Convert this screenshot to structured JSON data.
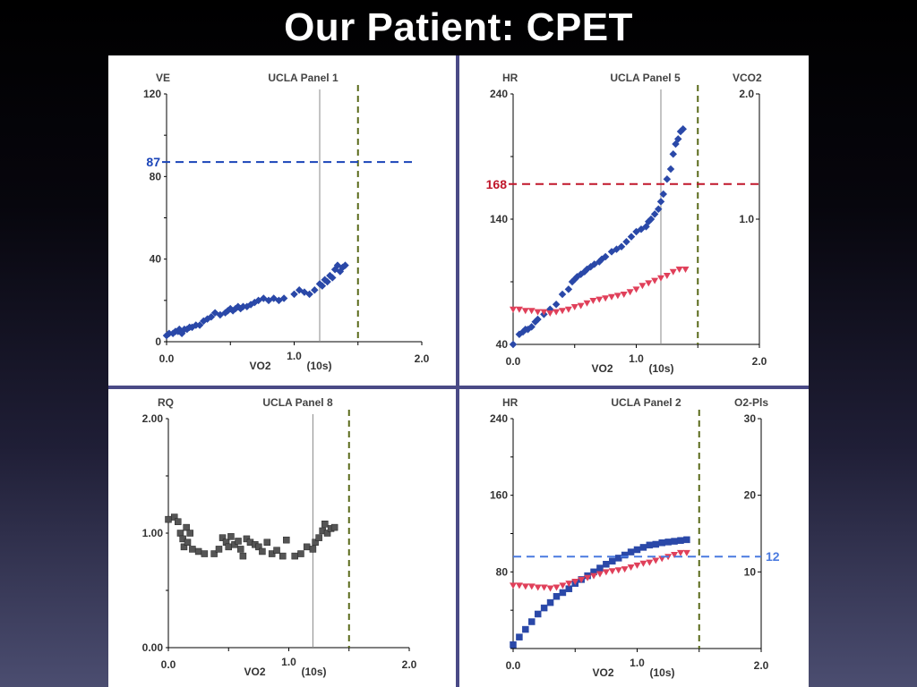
{
  "slide": {
    "title": "Our Patient:  CPET"
  },
  "colors": {
    "blue": "#2a48a8",
    "red": "#e0405a",
    "gray": "#555555",
    "refRed": "#c0162a",
    "refBlue": "#1a44b8",
    "refLightBlue": "#4a7ae0",
    "greenDash": "#5a6a1a"
  },
  "chart_data": [
    {
      "type": "scatter",
      "title": "UCLA  Panel 1",
      "xlabel": "VO2",
      "xunit": "(10s)",
      "ylabel": "VE",
      "xlim": [
        0,
        2.0
      ],
      "ylim": [
        0,
        120
      ],
      "x_ticks": [
        "0.0",
        "1.0",
        "2.0"
      ],
      "y_ticks": [
        "0",
        "40",
        "80",
        "120"
      ],
      "reference_line": {
        "value": 87,
        "label": "87"
      },
      "vlines": [
        1.2,
        1.5
      ],
      "series": [
        {
          "marker": "diamond",
          "color": "#2a48a8",
          "points": [
            [
              0.0,
              3
            ],
            [
              0.02,
              4
            ],
            [
              0.05,
              4
            ],
            [
              0.07,
              5
            ],
            [
              0.09,
              5
            ],
            [
              0.1,
              6
            ],
            [
              0.12,
              4
            ],
            [
              0.14,
              6
            ],
            [
              0.16,
              6
            ],
            [
              0.18,
              7
            ],
            [
              0.2,
              7
            ],
            [
              0.23,
              8
            ],
            [
              0.26,
              8
            ],
            [
              0.29,
              10
            ],
            [
              0.32,
              11
            ],
            [
              0.35,
              12
            ],
            [
              0.38,
              14
            ],
            [
              0.42,
              13
            ],
            [
              0.46,
              14
            ],
            [
              0.48,
              15
            ],
            [
              0.5,
              16
            ],
            [
              0.52,
              15
            ],
            [
              0.54,
              16
            ],
            [
              0.56,
              17
            ],
            [
              0.58,
              16
            ],
            [
              0.6,
              17
            ],
            [
              0.63,
              17
            ],
            [
              0.66,
              18
            ],
            [
              0.69,
              19
            ],
            [
              0.72,
              20
            ],
            [
              0.76,
              21
            ],
            [
              0.8,
              20
            ],
            [
              0.84,
              21
            ],
            [
              0.88,
              20
            ],
            [
              0.92,
              21
            ],
            [
              1.0,
              23
            ],
            [
              1.04,
              25
            ],
            [
              1.08,
              24
            ],
            [
              1.12,
              23
            ],
            [
              1.16,
              25
            ],
            [
              1.2,
              28
            ],
            [
              1.22,
              27
            ],
            [
              1.24,
              30
            ],
            [
              1.26,
              29
            ],
            [
              1.28,
              32
            ],
            [
              1.3,
              31
            ],
            [
              1.32,
              35
            ],
            [
              1.34,
              37
            ],
            [
              1.36,
              34
            ],
            [
              1.38,
              36
            ],
            [
              1.4,
              37
            ]
          ]
        }
      ]
    },
    {
      "type": "scatter",
      "title": "UCLA Panel 5",
      "xlabel": "VO2",
      "xunit": "(10s)",
      "ylabel": "HR",
      "y2label": "VCO2",
      "xlim": [
        0,
        2.0
      ],
      "ylim": [
        40,
        240
      ],
      "y2lim": [
        0,
        2.0
      ],
      "x_ticks": [
        "0.0",
        "1.0",
        "2.0"
      ],
      "y_ticks": [
        "40",
        "140",
        "240"
      ],
      "y2_ticks": [
        "1.0",
        "2.0"
      ],
      "reference_line": {
        "value": 168,
        "label": "168"
      },
      "vlines": [
        1.2,
        1.5
      ],
      "series": [
        {
          "marker": "diamond",
          "axis": "y2",
          "color": "#2a48a8",
          "points": [
            [
              0.0,
              0.0
            ],
            [
              0.05,
              0.08
            ],
            [
              0.08,
              0.1
            ],
            [
              0.1,
              0.12
            ],
            [
              0.12,
              0.12
            ],
            [
              0.15,
              0.14
            ],
            [
              0.18,
              0.18
            ],
            [
              0.2,
              0.2
            ],
            [
              0.25,
              0.24
            ],
            [
              0.3,
              0.28
            ],
            [
              0.35,
              0.32
            ],
            [
              0.4,
              0.4
            ],
            [
              0.45,
              0.44
            ],
            [
              0.48,
              0.5
            ],
            [
              0.5,
              0.52
            ],
            [
              0.52,
              0.54
            ],
            [
              0.55,
              0.56
            ],
            [
              0.58,
              0.58
            ],
            [
              0.6,
              0.6
            ],
            [
              0.63,
              0.62
            ],
            [
              0.66,
              0.64
            ],
            [
              0.7,
              0.66
            ],
            [
              0.72,
              0.68
            ],
            [
              0.75,
              0.7
            ],
            [
              0.8,
              0.74
            ],
            [
              0.84,
              0.76
            ],
            [
              0.88,
              0.78
            ],
            [
              0.92,
              0.82
            ],
            [
              0.96,
              0.86
            ],
            [
              1.0,
              0.9
            ],
            [
              1.04,
              0.92
            ],
            [
              1.08,
              0.94
            ],
            [
              1.1,
              0.98
            ],
            [
              1.12,
              1.0
            ],
            [
              1.15,
              1.04
            ],
            [
              1.18,
              1.08
            ],
            [
              1.2,
              1.14
            ],
            [
              1.22,
              1.2
            ],
            [
              1.25,
              1.32
            ],
            [
              1.28,
              1.4
            ],
            [
              1.3,
              1.52
            ],
            [
              1.32,
              1.6
            ],
            [
              1.34,
              1.64
            ],
            [
              1.36,
              1.7
            ],
            [
              1.38,
              1.72
            ]
          ]
        },
        {
          "marker": "triangle-down",
          "axis": "y",
          "color": "#e0405a",
          "points": [
            [
              0.0,
              68
            ],
            [
              0.05,
              68
            ],
            [
              0.1,
              67
            ],
            [
              0.15,
              67
            ],
            [
              0.2,
              66
            ],
            [
              0.25,
              66
            ],
            [
              0.3,
              65
            ],
            [
              0.35,
              66
            ],
            [
              0.4,
              67
            ],
            [
              0.45,
              68
            ],
            [
              0.5,
              70
            ],
            [
              0.55,
              71
            ],
            [
              0.6,
              73
            ],
            [
              0.65,
              75
            ],
            [
              0.7,
              76
            ],
            [
              0.75,
              77
            ],
            [
              0.8,
              78
            ],
            [
              0.85,
              79
            ],
            [
              0.9,
              80
            ],
            [
              0.95,
              82
            ],
            [
              1.0,
              84
            ],
            [
              1.05,
              87
            ],
            [
              1.1,
              89
            ],
            [
              1.15,
              91
            ],
            [
              1.2,
              93
            ],
            [
              1.25,
              95
            ],
            [
              1.3,
              98
            ],
            [
              1.35,
              100
            ],
            [
              1.4,
              100
            ]
          ]
        }
      ]
    },
    {
      "type": "scatter",
      "title": "UCLA Panel 8",
      "xlabel": "VO2",
      "xunit": "(10s)",
      "ylabel": "RQ",
      "xlim": [
        0,
        2.0
      ],
      "ylim": [
        0,
        2.0
      ],
      "x_ticks": [
        "0.0",
        "1.0",
        "2.0"
      ],
      "y_ticks": [
        "0.00",
        "1.00",
        "2.00"
      ],
      "vlines": [
        1.2,
        1.5
      ],
      "series": [
        {
          "marker": "square",
          "color": "#555555",
          "points": [
            [
              0.0,
              1.12
            ],
            [
              0.05,
              1.14
            ],
            [
              0.08,
              1.1
            ],
            [
              0.1,
              1.0
            ],
            [
              0.12,
              0.95
            ],
            [
              0.13,
              0.88
            ],
            [
              0.15,
              1.05
            ],
            [
              0.16,
              0.92
            ],
            [
              0.18,
              1.0
            ],
            [
              0.2,
              0.86
            ],
            [
              0.25,
              0.84
            ],
            [
              0.3,
              0.82
            ],
            [
              0.38,
              0.82
            ],
            [
              0.42,
              0.86
            ],
            [
              0.45,
              0.96
            ],
            [
              0.48,
              0.92
            ],
            [
              0.5,
              0.88
            ],
            [
              0.52,
              0.97
            ],
            [
              0.55,
              0.9
            ],
            [
              0.58,
              0.93
            ],
            [
              0.6,
              0.86
            ],
            [
              0.62,
              0.8
            ],
            [
              0.65,
              0.95
            ],
            [
              0.68,
              0.92
            ],
            [
              0.72,
              0.9
            ],
            [
              0.75,
              0.88
            ],
            [
              0.78,
              0.84
            ],
            [
              0.82,
              0.92
            ],
            [
              0.86,
              0.82
            ],
            [
              0.9,
              0.85
            ],
            [
              0.95,
              0.8
            ],
            [
              0.98,
              0.94
            ],
            [
              1.05,
              0.8
            ],
            [
              1.1,
              0.82
            ],
            [
              1.15,
              0.88
            ],
            [
              1.2,
              0.86
            ],
            [
              1.22,
              0.92
            ],
            [
              1.25,
              0.96
            ],
            [
              1.28,
              1.02
            ],
            [
              1.3,
              1.08
            ],
            [
              1.32,
              1.0
            ],
            [
              1.35,
              1.04
            ],
            [
              1.38,
              1.05
            ]
          ]
        }
      ]
    },
    {
      "type": "scatter",
      "title": "UCLA Panel 2",
      "xlabel": "VO2",
      "xunit": "(10s)",
      "ylabel": "HR",
      "y2label": "O2-Pls",
      "xlim": [
        0,
        2.0
      ],
      "ylim": [
        0,
        240
      ],
      "y2lim": [
        0,
        30
      ],
      "x_ticks": [
        "0.0",
        "1.0",
        "2.0"
      ],
      "y_ticks": [
        "80",
        "160",
        "240"
      ],
      "y2_ticks": [
        "10",
        "20",
        "30"
      ],
      "reference_line": {
        "value": 12,
        "label": "12"
      },
      "vlines": [
        1.5
      ],
      "series": [
        {
          "marker": "square",
          "axis": "y2",
          "color": "#2a48a8",
          "points": [
            [
              0.0,
              0.5
            ],
            [
              0.05,
              1.5
            ],
            [
              0.1,
              2.5
            ],
            [
              0.15,
              3.5
            ],
            [
              0.2,
              4.5
            ],
            [
              0.25,
              5.3
            ],
            [
              0.3,
              6.0
            ],
            [
              0.35,
              6.8
            ],
            [
              0.4,
              7.3
            ],
            [
              0.45,
              7.8
            ],
            [
              0.5,
              8.5
            ],
            [
              0.55,
              9.0
            ],
            [
              0.6,
              9.5
            ],
            [
              0.65,
              10.0
            ],
            [
              0.7,
              10.5
            ],
            [
              0.75,
              11.0
            ],
            [
              0.8,
              11.4
            ],
            [
              0.85,
              11.8
            ],
            [
              0.9,
              12.2
            ],
            [
              0.95,
              12.6
            ],
            [
              1.0,
              12.9
            ],
            [
              1.05,
              13.2
            ],
            [
              1.1,
              13.5
            ],
            [
              1.15,
              13.6
            ],
            [
              1.2,
              13.8
            ],
            [
              1.25,
              13.9
            ],
            [
              1.3,
              14.0
            ],
            [
              1.35,
              14.1
            ],
            [
              1.4,
              14.2
            ]
          ]
        },
        {
          "marker": "triangle-down",
          "axis": "y",
          "color": "#e0405a",
          "points": [
            [
              0.0,
              66
            ],
            [
              0.05,
              66
            ],
            [
              0.1,
              65
            ],
            [
              0.15,
              65
            ],
            [
              0.2,
              64
            ],
            [
              0.25,
              64
            ],
            [
              0.3,
              63
            ],
            [
              0.35,
              64
            ],
            [
              0.4,
              66
            ],
            [
              0.45,
              68
            ],
            [
              0.5,
              70
            ],
            [
              0.55,
              72
            ],
            [
              0.6,
              74
            ],
            [
              0.65,
              76
            ],
            [
              0.7,
              78
            ],
            [
              0.75,
              80
            ],
            [
              0.8,
              81
            ],
            [
              0.85,
              82
            ],
            [
              0.9,
              83
            ],
            [
              0.95,
              85
            ],
            [
              1.0,
              87
            ],
            [
              1.05,
              89
            ],
            [
              1.1,
              90
            ],
            [
              1.15,
              92
            ],
            [
              1.2,
              94
            ],
            [
              1.25,
              96
            ],
            [
              1.3,
              98
            ],
            [
              1.35,
              100
            ],
            [
              1.4,
              100
            ]
          ]
        }
      ]
    }
  ]
}
